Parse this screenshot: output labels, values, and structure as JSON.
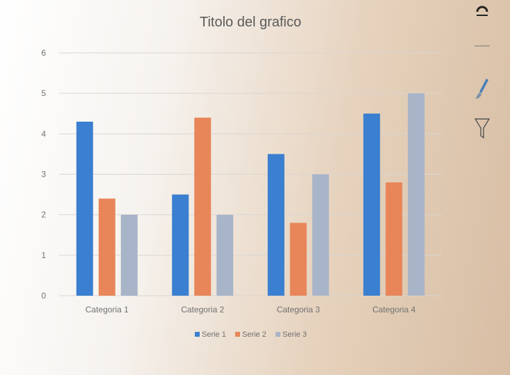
{
  "chart_data": {
    "type": "bar",
    "title": "Titolo del grafico",
    "categories": [
      "Categoria 1",
      "Categoria 2",
      "Categoria 3",
      "Categoria 4"
    ],
    "series": [
      {
        "name": "Serie 1",
        "color": "#3a7fd0",
        "values": [
          4.3,
          2.5,
          3.5,
          4.5
        ]
      },
      {
        "name": "Serie 2",
        "color": "#e8865a",
        "values": [
          2.4,
          4.4,
          1.8,
          2.8
        ]
      },
      {
        "name": "Serie 3",
        "color": "#a8b4c8",
        "values": [
          2.0,
          2.0,
          3.0,
          5.0
        ]
      }
    ],
    "ylim": [
      0,
      6
    ],
    "yticks": [
      0,
      1,
      2,
      3,
      4,
      5,
      6
    ],
    "grid": true,
    "legend": "bottom"
  },
  "toolbar": {
    "icons": [
      "chart-elements-icon",
      "chart-styles-icon",
      "chart-filters-icon"
    ]
  }
}
